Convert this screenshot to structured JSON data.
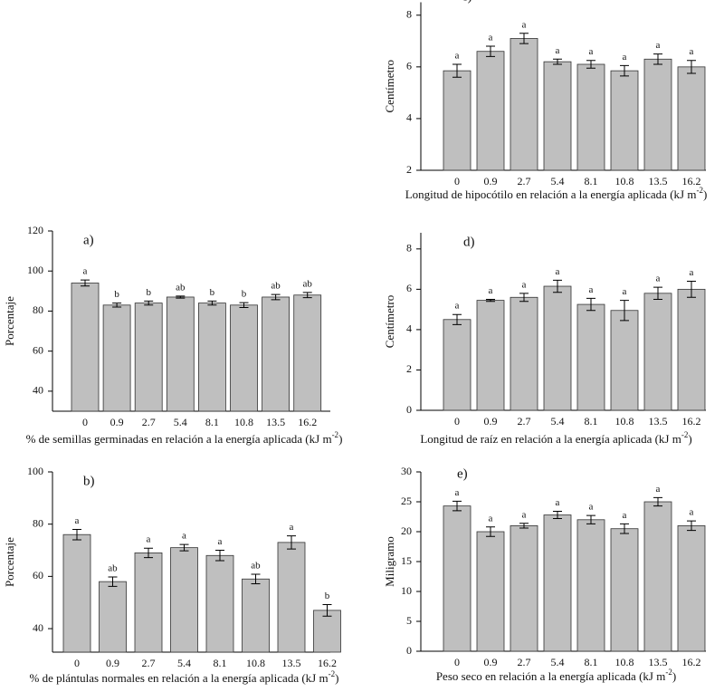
{
  "chart_data": [
    {
      "type": "bar",
      "title": "c)",
      "ylabel": "Centímetro",
      "xlabel": {
        "text": "Longitud de hipocótilo en relación a la energía aplicada (kJ m",
        "sup": "-2",
        "end": ")"
      },
      "categories": [
        "0",
        "0.9",
        "2.7",
        "5.4",
        "8.1",
        "10.8",
        "13.5",
        "16.2"
      ],
      "values": [
        5.85,
        6.6,
        7.1,
        6.2,
        6.1,
        5.85,
        6.3,
        6.0
      ],
      "errors": [
        0.25,
        0.2,
        0.2,
        0.1,
        0.15,
        0.2,
        0.2,
        0.25
      ],
      "letters": [
        "a",
        "a",
        "a",
        "a",
        "a",
        "a",
        "a",
        "a"
      ],
      "color": "#bfbfbf",
      "ylim": [
        2,
        8.5
      ],
      "yticks": [
        2,
        4,
        6,
        8
      ]
    },
    {
      "type": "bar",
      "title": "a)",
      "ylabel": "Porcentaje",
      "xlabel": {
        "text": "% de semillas germinadas en relación a la energía aplicada (kJ m",
        "sup": "-2",
        "end": ")"
      },
      "categories": [
        "0",
        "0.9",
        "2.7",
        "5.4",
        "8.1",
        "10.8",
        "13.5",
        "16.2"
      ],
      "values": [
        94,
        83,
        84,
        87,
        84,
        83,
        87,
        88
      ],
      "errors": [
        1.5,
        1,
        1,
        0.5,
        1,
        1.2,
        1.3,
        1.3
      ],
      "letters": [
        "a",
        "b",
        "b",
        "ab",
        "b",
        "b",
        "ab",
        "ab"
      ],
      "color": "#bfbfbf",
      "ylim": [
        30,
        120
      ],
      "yticks": [
        40,
        60,
        80,
        100,
        120
      ]
    },
    {
      "type": "bar",
      "title": "d)",
      "ylabel": "Centímetro",
      "xlabel": {
        "text": "Longitud de raíz en relación a la energía aplicada (kJ m",
        "sup": "-2",
        "end": ")"
      },
      "categories": [
        "0",
        "0.9",
        "2.7",
        "5.4",
        "8.1",
        "10.8",
        "13.5",
        "16.2"
      ],
      "values": [
        4.5,
        5.45,
        5.6,
        6.15,
        5.25,
        4.95,
        5.8,
        6.0
      ],
      "errors": [
        0.25,
        0.05,
        0.2,
        0.3,
        0.3,
        0.5,
        0.3,
        0.4
      ],
      "letters": [
        "a",
        "a",
        "a",
        "a",
        "a",
        "a",
        "a",
        "a"
      ],
      "color": "#bfbfbf",
      "ylim": [
        0,
        8.8
      ],
      "yticks": [
        0,
        2,
        4,
        6,
        8
      ]
    },
    {
      "type": "bar",
      "title": "b)",
      "ylabel": "Porcentaje",
      "xlabel": {
        "text": "% de plántulas normales en relación a la energía aplicada (kJ m",
        "sup": "-2",
        "end": ")"
      },
      "categories": [
        "0",
        "0.9",
        "2.7",
        "5.4",
        "8.1",
        "10.8",
        "13.5",
        "16.2"
      ],
      "values": [
        76,
        58,
        69,
        71,
        68,
        59,
        73,
        47
      ],
      "errors": [
        2,
        1.8,
        1.8,
        1.2,
        2,
        1.8,
        2.5,
        2.2
      ],
      "letters": [
        "a",
        "ab",
        "a",
        "a",
        "a",
        "ab",
        "a",
        "b"
      ],
      "color": "#bfbfbf",
      "ylim": [
        31,
        100
      ],
      "yticks": [
        40,
        60,
        80,
        100
      ]
    },
    {
      "type": "bar",
      "title": "e)",
      "ylabel": "Miligramo",
      "xlabel": {
        "text": "Peso seco en relación a la energía aplicada (kJ m",
        "sup": "-2",
        "end": ")"
      },
      "categories": [
        "0",
        "0.9",
        "2.7",
        "5.4",
        "8.1",
        "10.8",
        "13.5",
        "16.2"
      ],
      "values": [
        24.3,
        20,
        21,
        22.8,
        22,
        20.5,
        25,
        21
      ],
      "errors": [
        0.8,
        0.8,
        0.4,
        0.6,
        0.7,
        0.8,
        0.7,
        0.8
      ],
      "letters": [
        "a",
        "a",
        "a",
        "a",
        "a",
        "a",
        "a",
        "a"
      ],
      "color": "#bfbfbf",
      "ylim": [
        0,
        30
      ],
      "yticks": [
        0,
        5,
        10,
        15,
        20,
        25,
        30
      ]
    }
  ]
}
